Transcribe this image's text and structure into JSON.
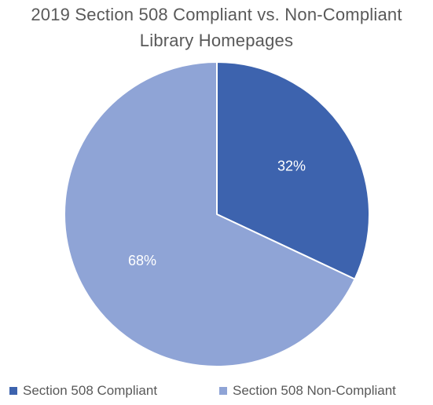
{
  "chart_data": {
    "type": "pie",
    "title_lines": [
      "2019 Section 508 Compliant vs. Non-Compliant",
      "Library Homepages"
    ],
    "slices": [
      {
        "name": "Section 508 Compliant",
        "value": 32,
        "label": "32%",
        "color": "#3D63AE"
      },
      {
        "name": "Section 508 Non-Compliant",
        "value": 68,
        "label": "68%",
        "color": "#8FA4D6"
      }
    ],
    "legend_position": "bottom"
  }
}
